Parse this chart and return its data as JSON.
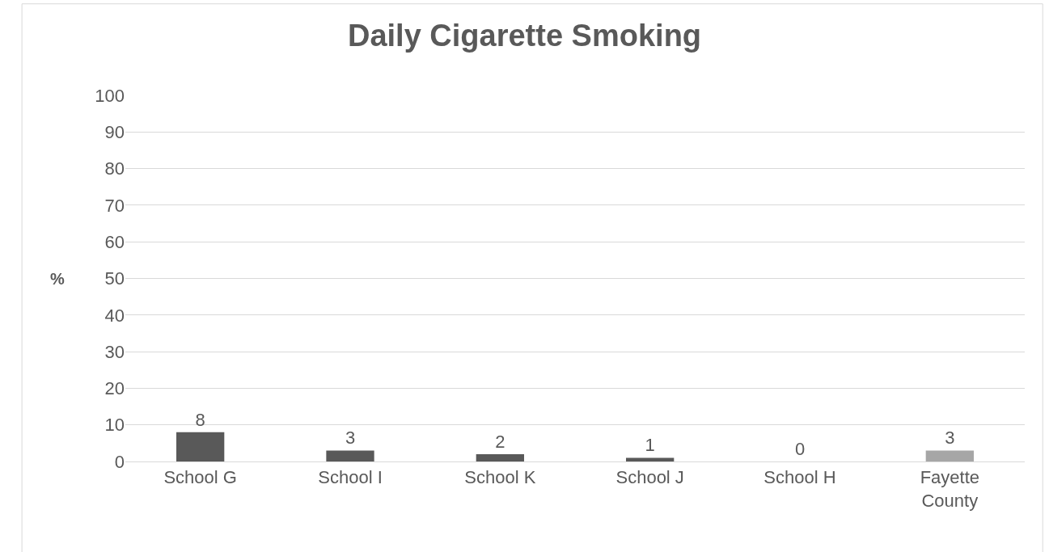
{
  "chart_data": {
    "type": "bar",
    "title": "Daily Cigarette Smoking",
    "ylabel": "%",
    "categories": [
      "School G",
      "School I",
      "School K",
      "School J",
      "School H",
      "Fayette County"
    ],
    "values": [
      8,
      3,
      2,
      1,
      0,
      3
    ],
    "colors": [
      "#595959",
      "#595959",
      "#595959",
      "#595959",
      "#595959",
      "#a6a6a6"
    ],
    "ylim": [
      0,
      100
    ],
    "yticks": [
      0,
      10,
      20,
      30,
      40,
      50,
      60,
      70,
      80,
      90,
      100
    ],
    "grid": "y",
    "data_labels": true
  }
}
